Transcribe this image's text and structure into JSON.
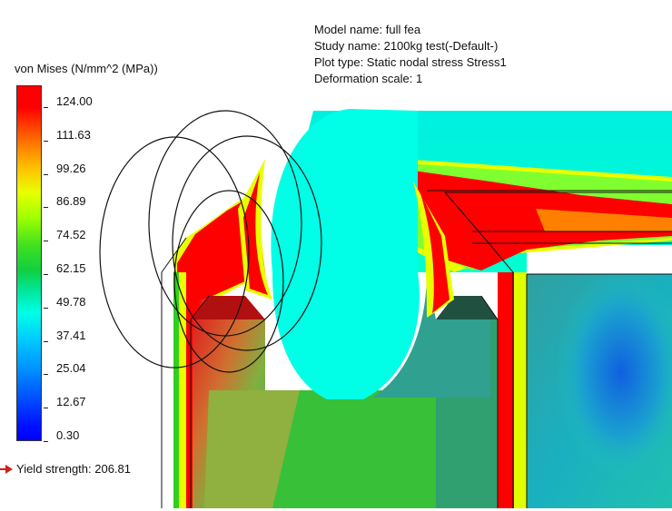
{
  "info": {
    "model_name": "Model name: full fea",
    "study_name": "Study name: 2100kg test(-Default-)",
    "plot_type": "Plot type: Static nodal stress Stress1",
    "deformation_scale": "Deformation scale: 1"
  },
  "legend": {
    "title": "von Mises (N/mm^2 (MPa))",
    "ticks": [
      "124.00",
      "111.63",
      "99.26",
      "86.89",
      "74.52",
      "62.15",
      "49.78",
      "37.41",
      "25.04",
      "12.67",
      "0.30"
    ],
    "yield_strength": "Yield strength: 206.81"
  },
  "colors": {
    "max_red": "#ff0000",
    "orange": "#ff8000",
    "yellow": "#e8ff00",
    "green": "#20d020",
    "cyan": "#00ffe6",
    "blue": "#0050ff",
    "min_blue": "#0000ff"
  }
}
